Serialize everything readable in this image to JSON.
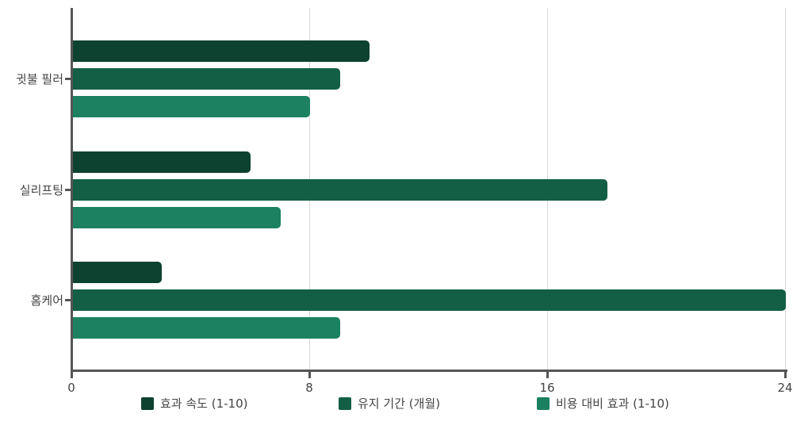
{
  "chart_data": {
    "type": "bar",
    "orientation": "horizontal",
    "title": "",
    "xlabel": "",
    "ylabel": "",
    "xlim": [
      0,
      24
    ],
    "x_ticks": [
      0,
      8,
      16,
      24
    ],
    "grid": "vertical",
    "legend_position": "bottom",
    "categories": [
      "귓불 필러",
      "실리프팅",
      "홈케어"
    ],
    "series": [
      {
        "name": "효과 속도 (1-10)",
        "color": "#0e4230",
        "values": [
          10,
          6,
          3
        ]
      },
      {
        "name": "유지 기간 (개월)",
        "color": "#135f46",
        "values": [
          9,
          18,
          24
        ]
      },
      {
        "name": "비용 대비 효과 (1-10)",
        "color": "#1b8160",
        "values": [
          8,
          7,
          9
        ]
      }
    ]
  },
  "axis": {
    "x_tick_labels": [
      "0",
      "8",
      "16",
      "24"
    ],
    "y_tick_labels": [
      "귓불 필러",
      "실리프팅",
      "홈케어"
    ]
  },
  "legend": [
    {
      "label": "효과 속도 (1-10)",
      "color": "#0e4230"
    },
    {
      "label": "유지 기간 (개월)",
      "color": "#135f46"
    },
    {
      "label": "비용 대비 효과 (1-10)",
      "color": "#1b8160"
    }
  ]
}
